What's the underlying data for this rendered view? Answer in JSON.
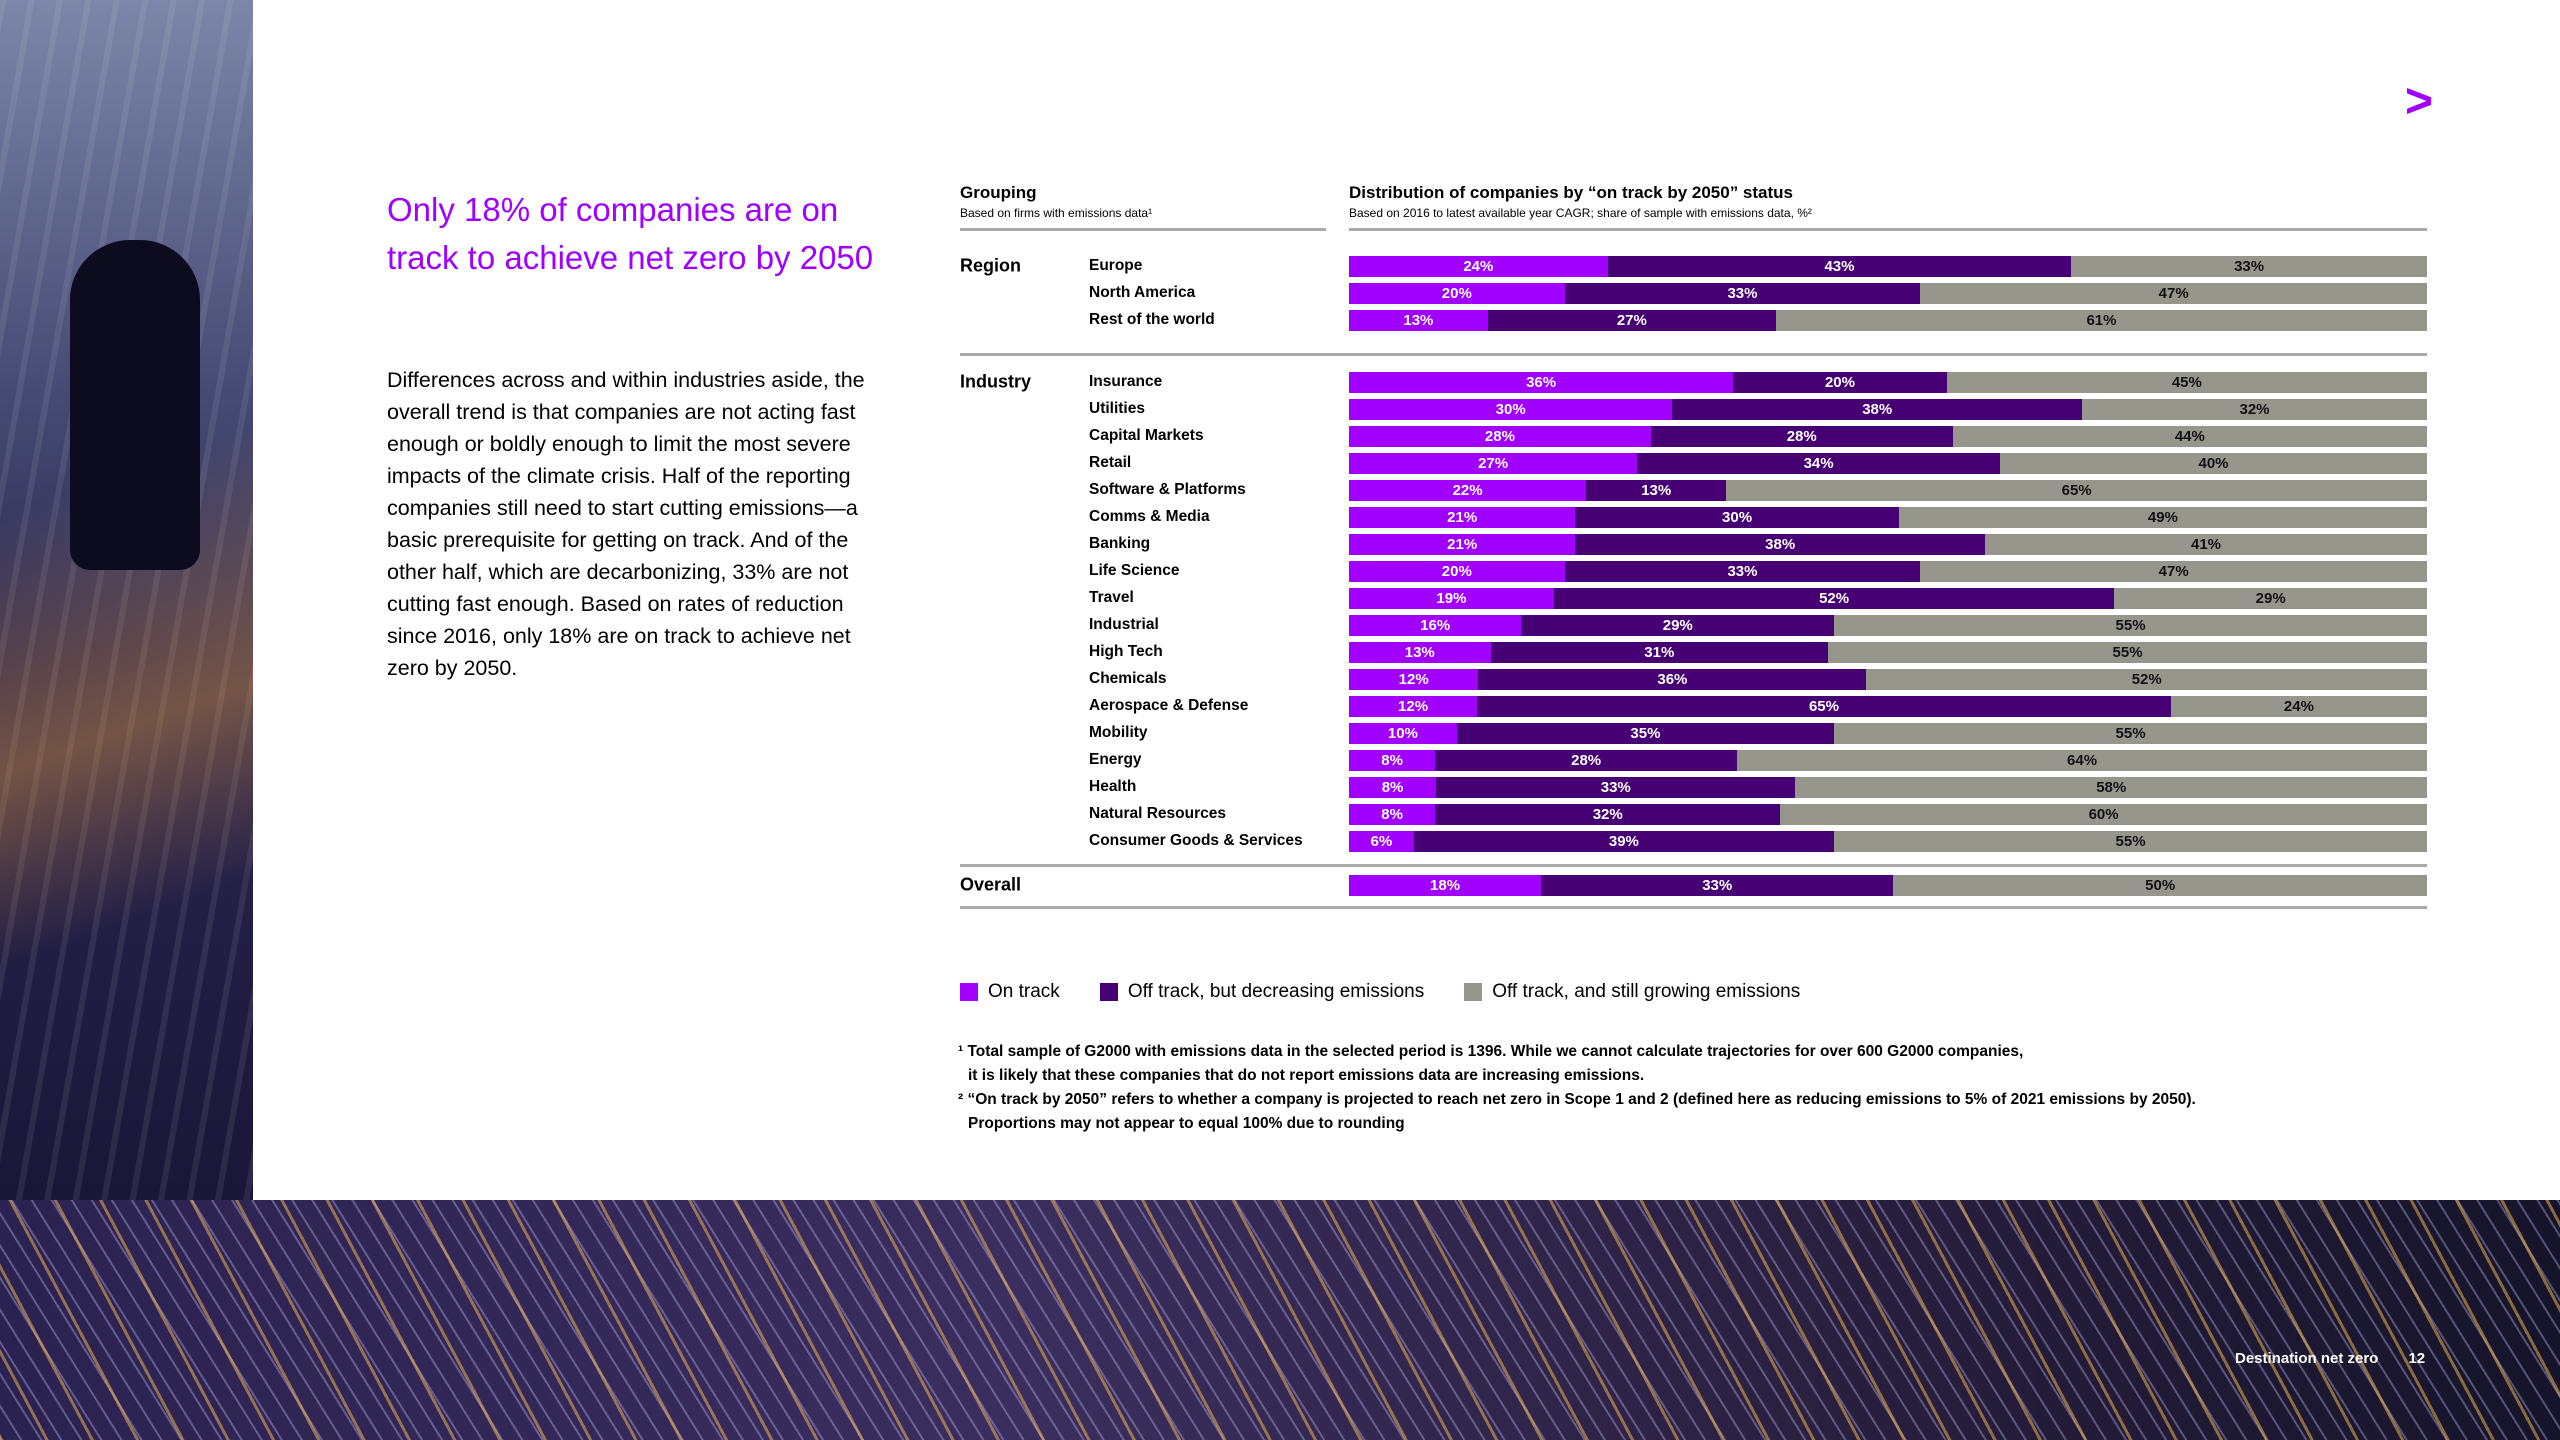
{
  "headline": "Only 18% of companies are on track to achieve net zero by 2050",
  "body": "Differences across and within industries aside, the overall trend is that companies are not acting fast enough or boldly enough to limit the most severe impacts of the climate crisis. Half of the reporting companies still need to start cutting emissions—a basic prerequisite for getting on track. And of the other half, which are decarbonizing, 33% are not cutting fast enough. Based on rates of reduction since 2016, only 18% are on track to achieve net zero by 2050.",
  "logo_icon": "accenture-greater-than-icon",
  "chart_data": {
    "type": "bar",
    "orientation": "horizontal-stacked-100",
    "grouping_title": "Grouping",
    "grouping_subtitle": "Based on firms with emissions data¹",
    "title": "Distribution of companies by “on track by 2050” status",
    "subtitle": "Based on 2016 to latest available year CAGR; share of sample with emissions data, %²",
    "unit": "%",
    "colors": {
      "on_track": "#a100ff",
      "decreasing": "#460073",
      "growing": "#96968c"
    },
    "series_names": [
      "On track",
      "Off track, but decreasing emissions",
      "Off track, and still growing emissions"
    ],
    "groups": [
      {
        "name": "Region",
        "rows": [
          {
            "label": "Europe",
            "values": [
              24,
              43,
              33
            ]
          },
          {
            "label": "North America",
            "values": [
              20,
              33,
              47
            ]
          },
          {
            "label": "Rest of the world",
            "values": [
              13,
              27,
              61
            ]
          }
        ]
      },
      {
        "name": "Industry",
        "rows": [
          {
            "label": "Insurance",
            "values": [
              36,
              20,
              45
            ]
          },
          {
            "label": "Utilities",
            "values": [
              30,
              38,
              32
            ]
          },
          {
            "label": "Capital Markets",
            "values": [
              28,
              28,
              44
            ]
          },
          {
            "label": "Retail",
            "values": [
              27,
              34,
              40
            ]
          },
          {
            "label": "Software & Platforms",
            "values": [
              22,
              13,
              65
            ]
          },
          {
            "label": "Comms & Media",
            "values": [
              21,
              30,
              49
            ]
          },
          {
            "label": "Banking",
            "values": [
              21,
              38,
              41
            ]
          },
          {
            "label": "Life Science",
            "values": [
              20,
              33,
              47
            ]
          },
          {
            "label": "Travel",
            "values": [
              19,
              52,
              29
            ]
          },
          {
            "label": "Industrial",
            "values": [
              16,
              29,
              55
            ]
          },
          {
            "label": "High Tech",
            "values": [
              13,
              31,
              55
            ]
          },
          {
            "label": "Chemicals",
            "values": [
              12,
              36,
              52
            ]
          },
          {
            "label": "Aerospace & Defense",
            "values": [
              12,
              65,
              24
            ]
          },
          {
            "label": "Mobility",
            "values": [
              10,
              35,
              55
            ]
          },
          {
            "label": "Energy",
            "values": [
              8,
              28,
              64
            ]
          },
          {
            "label": "Health",
            "values": [
              8,
              33,
              58
            ]
          },
          {
            "label": "Natural Resources",
            "values": [
              8,
              32,
              60
            ]
          },
          {
            "label": "Consumer Goods & Services",
            "values": [
              6,
              39,
              55
            ]
          }
        ]
      },
      {
        "name": "Overall",
        "rows": [
          {
            "label": "",
            "values": [
              18,
              33,
              50
            ]
          }
        ]
      }
    ],
    "legend_position": "bottom-left"
  },
  "footnotes": [
    "¹ Total sample of G2000 with emissions data in the selected period is 1396. While we cannot calculate trajectories for over 600 G2000 companies,",
    "  it is likely that these companies that do not report emissions data are increasing emissions.",
    "² “On track by 2050” refers to whether a company is projected to reach net zero in Scope 1 and 2 (defined here as reducing emissions to 5% of 2021 emissions by 2050).",
    "  Proportions may not appear to equal 100% due to rounding"
  ],
  "footer": {
    "title": "Destination net zero",
    "page": "12"
  }
}
